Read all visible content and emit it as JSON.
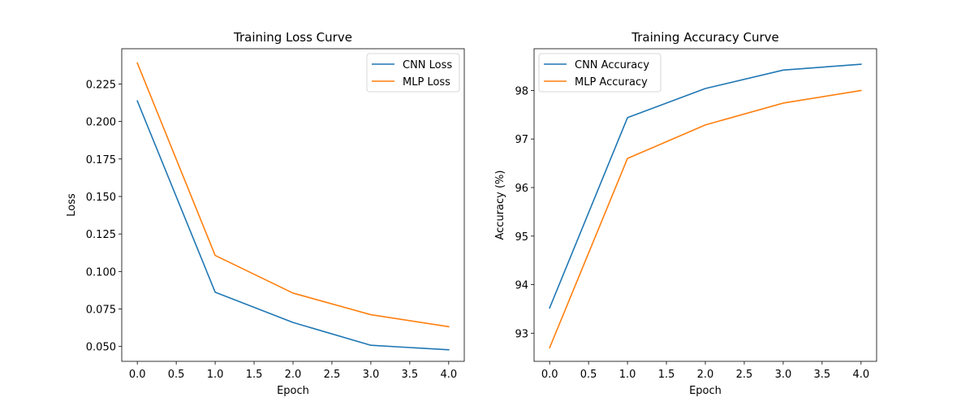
{
  "chart_data": [
    {
      "type": "line",
      "title": "Training Loss Curve",
      "xlabel": "Epoch",
      "ylabel": "Loss",
      "xlim": [
        -0.2,
        4.2
      ],
      "ylim": [
        0.0401,
        0.2485
      ],
      "xticks": [
        0.0,
        0.5,
        1.0,
        1.5,
        2.0,
        2.5,
        3.0,
        3.5,
        4.0
      ],
      "xtick_labels": [
        "0.0",
        "0.5",
        "1.0",
        "1.5",
        "2.0",
        "2.5",
        "3.0",
        "3.5",
        "4.0"
      ],
      "yticks": [
        0.05,
        0.075,
        0.1,
        0.125,
        0.15,
        0.175,
        0.2,
        0.225
      ],
      "ytick_labels": [
        "0.050",
        "0.075",
        "0.100",
        "0.125",
        "0.150",
        "0.175",
        "0.200",
        "0.225"
      ],
      "grid": false,
      "legend_position": "upper right",
      "x": [
        0,
        1,
        2,
        3,
        4
      ],
      "series": [
        {
          "name": "CNN Loss",
          "color": "#1f77b4",
          "values": [
            0.2137,
            0.0862,
            0.066,
            0.0508,
            0.0478
          ]
        },
        {
          "name": "MLP Loss",
          "color": "#ff7f0e",
          "values": [
            0.239,
            0.1107,
            0.0856,
            0.0712,
            0.0632
          ]
        }
      ]
    },
    {
      "type": "line",
      "title": "Training Accuracy Curve",
      "xlabel": "Epoch",
      "ylabel": "Accuracy (%)",
      "xlim": [
        -0.2,
        4.2
      ],
      "ylim": [
        92.42,
        98.86
      ],
      "xticks": [
        0.0,
        0.5,
        1.0,
        1.5,
        2.0,
        2.5,
        3.0,
        3.5,
        4.0
      ],
      "xtick_labels": [
        "0.0",
        "0.5",
        "1.0",
        "1.5",
        "2.0",
        "2.5",
        "3.0",
        "3.5",
        "4.0"
      ],
      "yticks": [
        93,
        94,
        95,
        96,
        97,
        98
      ],
      "ytick_labels": [
        "93",
        "94",
        "95",
        "96",
        "97",
        "98"
      ],
      "grid": false,
      "legend_position": "upper left",
      "x": [
        0,
        1,
        2,
        3,
        4
      ],
      "series": [
        {
          "name": "CNN Accuracy",
          "color": "#1f77b4",
          "values": [
            93.52,
            97.44,
            98.04,
            98.42,
            98.54
          ]
        },
        {
          "name": "MLP Accuracy",
          "color": "#ff7f0e",
          "values": [
            92.7,
            96.6,
            97.29,
            97.74,
            98.0
          ]
        }
      ]
    }
  ]
}
